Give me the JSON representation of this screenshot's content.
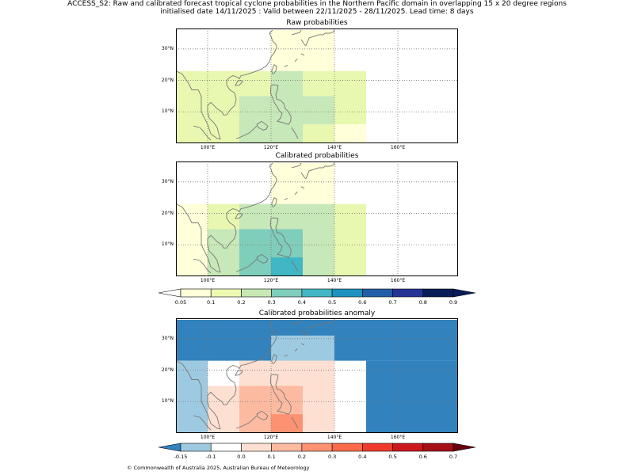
{
  "header": {
    "line1": "ACCESS_S2: Raw and calibrated forecast tropical cyclone probabilities in the Northern Pacific domain in overlapping 15 x 20 degree regions",
    "line2": "initialised date 14/11/2025 :  Valid between 22/11/2025 - 28/11/2025. Lead time: 8 days"
  },
  "map_axes": {
    "lat_labels": [
      "10°N",
      "20°N",
      "30°N"
    ],
    "lon_labels": [
      "100°E",
      "120°E",
      "140°E",
      "160°E"
    ]
  },
  "panels": [
    {
      "title": "Raw probabilities",
      "cells": [
        {
          "lon": [
            90,
            100
          ],
          "lat": [
            0,
            23
          ],
          "color": "#e9f8b0"
        },
        {
          "lon": [
            100,
            110
          ],
          "lat": [
            0,
            23
          ],
          "color": "#e9f8b0"
        },
        {
          "lon": [
            110,
            120
          ],
          "lat": [
            15,
            23
          ],
          "color": "#e9f8b0"
        },
        {
          "lon": [
            110,
            120
          ],
          "lat": [
            0,
            15
          ],
          "color": "#c7e8b8"
        },
        {
          "lon": [
            120,
            130
          ],
          "lat": [
            0,
            23
          ],
          "color": "#c7e8b8"
        },
        {
          "lon": [
            130,
            140
          ],
          "lat": [
            15,
            23
          ],
          "color": "#e9f8b0"
        },
        {
          "lon": [
            130,
            140
          ],
          "lat": [
            6,
            15
          ],
          "color": "#c7e8b8"
        },
        {
          "lon": [
            130,
            140
          ],
          "lat": [
            0,
            6
          ],
          "color": "#e9f8b0"
        },
        {
          "lon": [
            140,
            150
          ],
          "lat": [
            6,
            23
          ],
          "color": "#e9f8b0"
        },
        {
          "lon": [
            140,
            150
          ],
          "lat": [
            0,
            6
          ],
          "color": "#ffffd9"
        },
        {
          "lon": [
            120,
            140
          ],
          "lat": [
            23,
            36
          ],
          "color": "#ffffd9"
        },
        {
          "lon": [
            90,
            110
          ],
          "lat": [
            23,
            36
          ],
          "color": "#ffffff"
        }
      ]
    },
    {
      "title": "Calibrated probabilities",
      "cells": [
        {
          "lon": [
            90,
            100
          ],
          "lat": [
            0,
            23
          ],
          "color": "#ffffd9"
        },
        {
          "lon": [
            100,
            110
          ],
          "lat": [
            15,
            23
          ],
          "color": "#e9f8b0"
        },
        {
          "lon": [
            100,
            110
          ],
          "lat": [
            0,
            15
          ],
          "color": "#c7e8b8"
        },
        {
          "lon": [
            110,
            130
          ],
          "lat": [
            15,
            23
          ],
          "color": "#c7e8b8"
        },
        {
          "lon": [
            110,
            130
          ],
          "lat": [
            0,
            15
          ],
          "color": "#7fcdbb"
        },
        {
          "lon": [
            120,
            130
          ],
          "lat": [
            0,
            6
          ],
          "color": "#41b6c4"
        },
        {
          "lon": [
            130,
            140
          ],
          "lat": [
            0,
            23
          ],
          "color": "#c7e8b8"
        },
        {
          "lon": [
            140,
            150
          ],
          "lat": [
            0,
            23
          ],
          "color": "#e9f8b0"
        },
        {
          "lon": [
            120,
            140
          ],
          "lat": [
            23,
            36
          ],
          "color": "#ffffd9"
        }
      ]
    },
    {
      "title": "Calibrated probabilities anomaly",
      "cells": [
        {
          "lon": [
            90,
            180
          ],
          "lat": [
            23,
            36
          ],
          "color": "#3182bd"
        },
        {
          "lon": [
            150,
            180
          ],
          "lat": [
            0,
            23
          ],
          "color": "#3182bd"
        },
        {
          "lon": [
            90,
            100
          ],
          "lat": [
            0,
            23
          ],
          "color": "#9ecae1"
        },
        {
          "lon": [
            120,
            140
          ],
          "lat": [
            23,
            31
          ],
          "color": "#9ecae1"
        },
        {
          "lon": [
            100,
            110
          ],
          "lat": [
            0,
            15
          ],
          "color": "#fee0d2"
        },
        {
          "lon": [
            110,
            140
          ],
          "lat": [
            15,
            23
          ],
          "color": "#fee0d2"
        },
        {
          "lon": [
            110,
            130
          ],
          "lat": [
            0,
            15
          ],
          "color": "#fcbba1"
        },
        {
          "lon": [
            120,
            130
          ],
          "lat": [
            0,
            6
          ],
          "color": "#fc9272"
        },
        {
          "lon": [
            130,
            140
          ],
          "lat": [
            0,
            15
          ],
          "color": "#fee0d2"
        }
      ]
    }
  ],
  "colorbars": [
    {
      "labels": [
        "0.05",
        "0.1",
        "0.2",
        "0.3",
        "0.4",
        "0.5",
        "0.6",
        "0.7",
        "0.8",
        "0.9"
      ],
      "colors": [
        "#ffffd9",
        "#edf8b1",
        "#c7e9b4",
        "#7fcdbb",
        "#41b6c4",
        "#1d91c0",
        "#225ea8",
        "#253494",
        "#081d58"
      ],
      "under": "#ffffff",
      "over": "#081d58"
    },
    {
      "labels": [
        "-0.15",
        "-0.1",
        "0.0",
        "0.1",
        "0.2",
        "0.3",
        "0.4",
        "0.5",
        "0.6",
        "0.7"
      ],
      "colors": [
        "#9ecae1",
        "#ffffff",
        "#fee0d2",
        "#fcbba1",
        "#fc9272",
        "#fb6a4a",
        "#ef3b2c",
        "#cb181d",
        "#a50f15"
      ],
      "under": "#3182bd",
      "over": "#67000d"
    }
  ],
  "footer": "© Commonwealth of Australia 2025, Australian Bureau of Meteorology"
}
